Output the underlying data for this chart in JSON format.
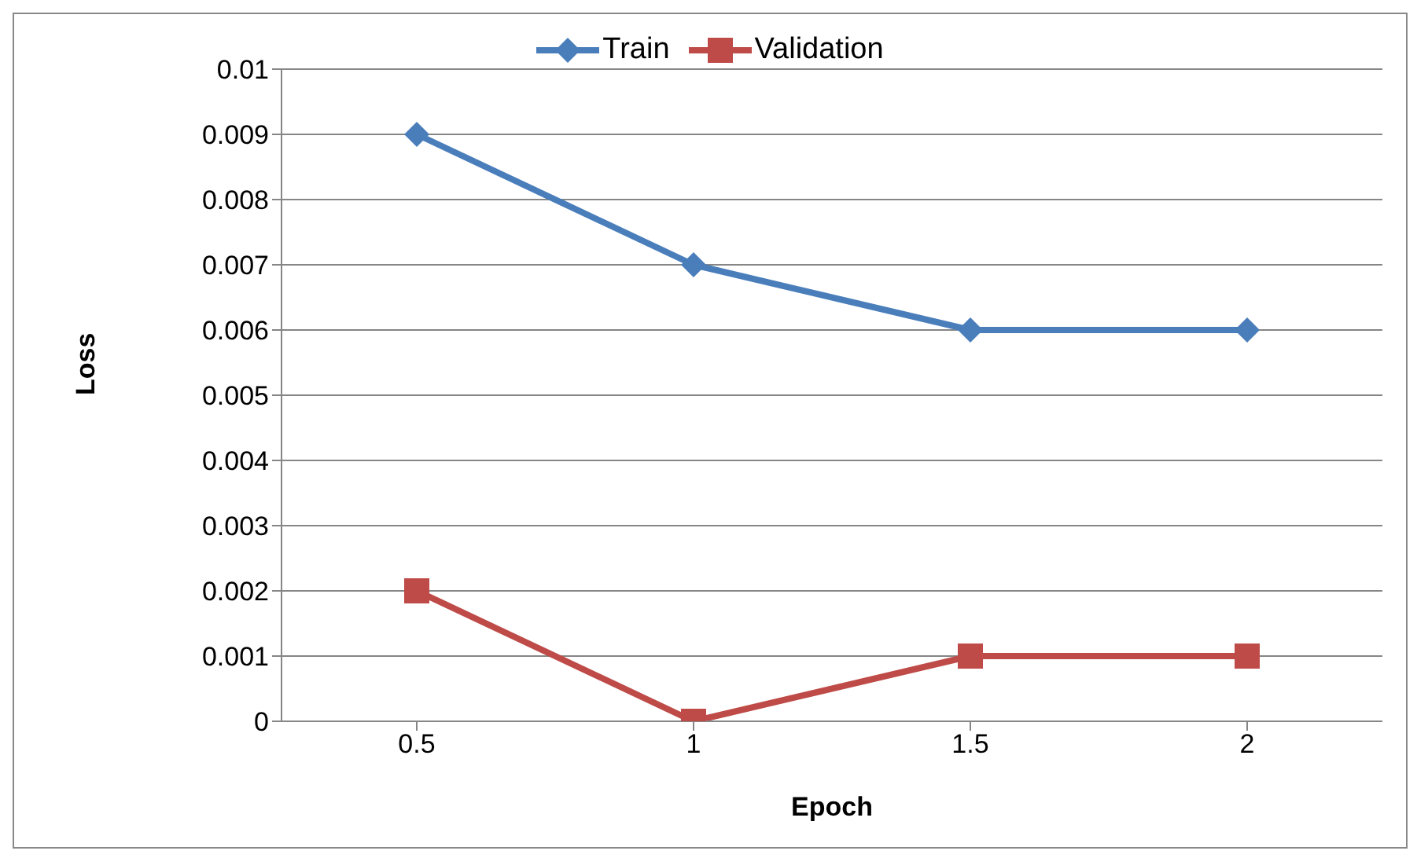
{
  "chart_data": {
    "type": "line",
    "xlabel": "Epoch",
    "ylabel": "Loss",
    "categories": [
      "0.5",
      "1",
      "1.5",
      "2"
    ],
    "series": [
      {
        "name": "Train",
        "color": "#4a7ebb",
        "values": [
          0.009,
          0.007,
          0.006,
          0.006
        ],
        "marker": "diamond"
      },
      {
        "name": "Validation",
        "color": "#be4b48",
        "values": [
          0.002,
          0,
          0.001,
          0.001
        ],
        "marker": "square"
      }
    ],
    "ylim": [
      0,
      0.01
    ],
    "yticks": [
      0,
      0.001,
      0.002,
      0.003,
      0.004,
      0.005,
      0.006,
      0.007,
      0.008,
      0.009,
      0.01
    ],
    "grid": "y",
    "legend": "top",
    "line_style": "solid"
  }
}
